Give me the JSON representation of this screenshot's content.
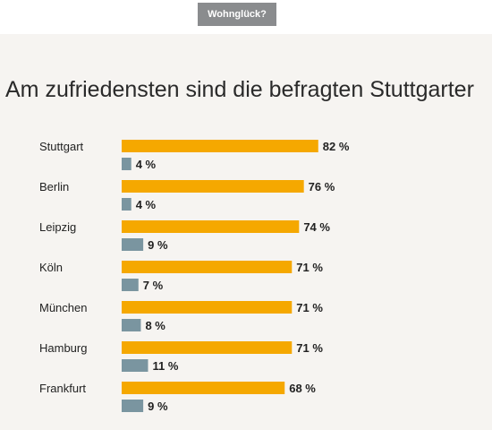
{
  "header": {
    "tag_label": "Wohnglück?"
  },
  "colors": {
    "satisfied": "#f5a800",
    "unsatisfied": "#7a95a0",
    "label": "#222222",
    "background": "#f6f4f1"
  },
  "chart_data": {
    "type": "bar",
    "orientation": "horizontal",
    "title": "Am zufriedensten sind die befragten Stuttgarter",
    "categories": [
      "Stuttgart",
      "Berlin",
      "Leipzig",
      "Köln",
      "München",
      "Hamburg",
      "Frankfurt"
    ],
    "series": [
      {
        "values": [
          82,
          76,
          74,
          71,
          71,
          71,
          68
        ],
        "color": "#f5a800"
      },
      {
        "values": [
          4,
          4,
          9,
          7,
          8,
          11,
          9
        ],
        "color": "#7a95a0"
      }
    ],
    "value_suffix": " %",
    "xlim": [
      0,
      100
    ],
    "grid": false,
    "legend": "none"
  }
}
